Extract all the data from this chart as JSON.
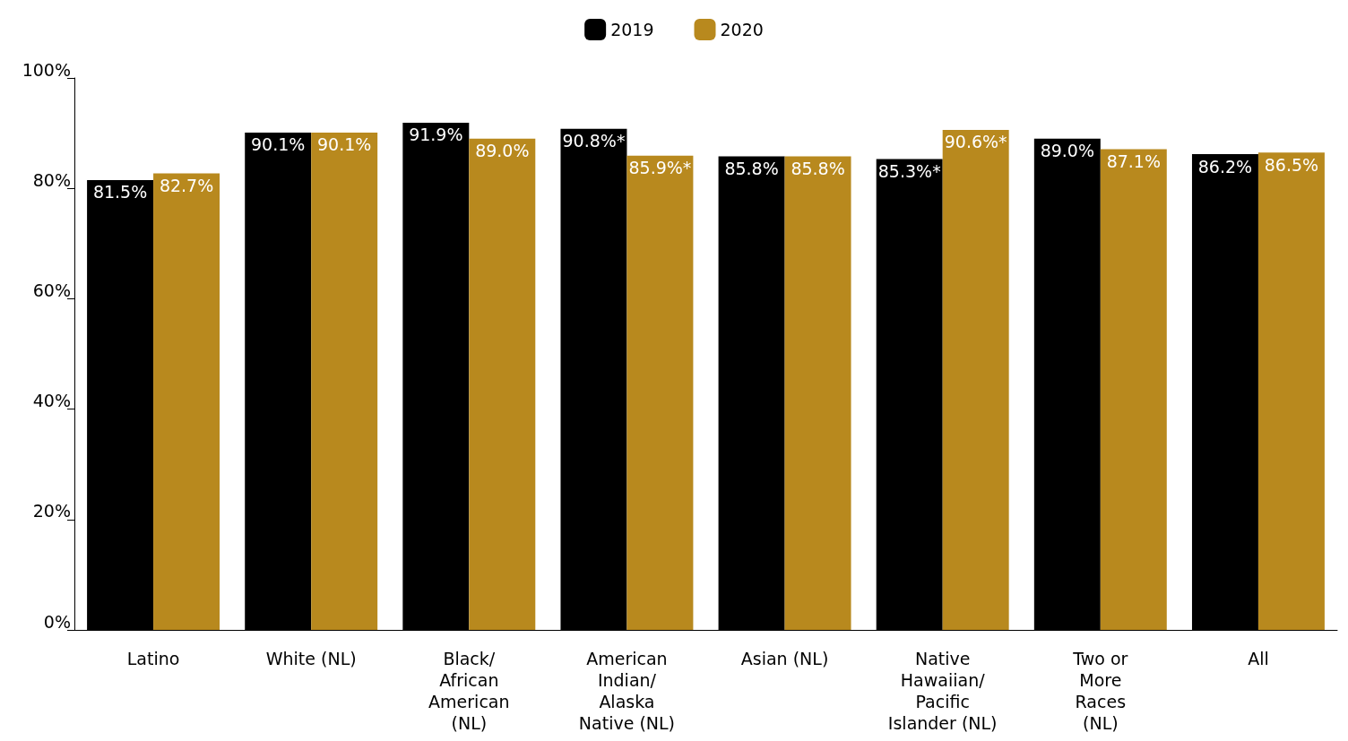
{
  "chart_data": {
    "type": "bar",
    "categories": [
      "Latino",
      "White (NL)",
      "Black/\nAfrican\nAmerican\n(NL)",
      "American\nIndian/\nAlaska\nNative (NL)",
      "Asian (NL)",
      "Native\nHawaiian/\nPacific\nIslander (NL)",
      "Two or\nMore\nRaces\n(NL)",
      "All"
    ],
    "series": [
      {
        "name": "2019",
        "color": "#000000",
        "values": [
          81.5,
          90.1,
          91.9,
          90.8,
          85.8,
          85.3,
          89.0,
          86.2
        ],
        "value_labels": [
          "81.5%",
          "90.1%",
          "91.9%",
          "90.8%*",
          "85.8%",
          "85.3%*",
          "89.0%",
          "86.2%"
        ]
      },
      {
        "name": "2020",
        "color": "#b8891e",
        "values": [
          82.7,
          90.1,
          89.0,
          85.9,
          85.8,
          90.6,
          87.1,
          86.5
        ],
        "value_labels": [
          "82.7%",
          "90.1%",
          "89.0%",
          "85.9%*",
          "85.8%",
          "90.6%*",
          "87.1%",
          "86.5%"
        ]
      }
    ],
    "ylim": [
      0,
      100
    ],
    "yticks": [
      {
        "value": 0,
        "label": "0%"
      },
      {
        "value": 20,
        "label": "20%"
      },
      {
        "value": 40,
        "label": "40%"
      },
      {
        "value": 60,
        "label": "60%"
      },
      {
        "value": 80,
        "label": "80%"
      },
      {
        "value": 100,
        "label": "100%"
      }
    ],
    "legend": "top",
    "grid": false
  }
}
